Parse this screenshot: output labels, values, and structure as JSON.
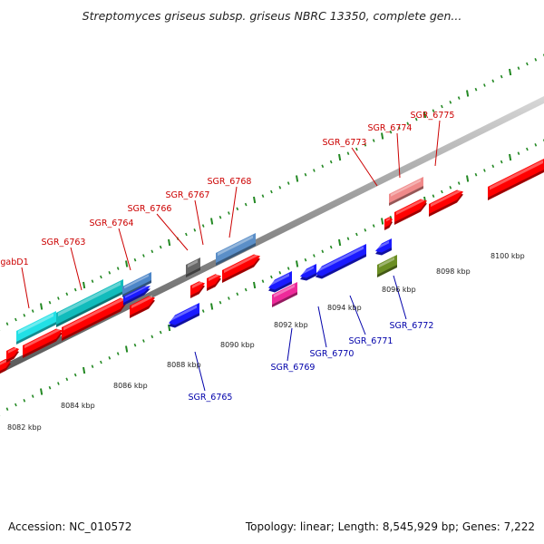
{
  "title": "Streptomyces griseus subsp. griseus NBRC 13350, complete gen...",
  "footer": {
    "accession": "Accession: NC_010572",
    "topology": "Topology: linear; Length: 8,545,929 bp; Genes: 7,222"
  },
  "colors": {
    "forward_label": "#cc0000",
    "reverse_label": "#0000aa",
    "forward_gene": "#ff0000",
    "reverse_gene": "#1a1aff",
    "ruler_dots": "#228822",
    "axis": "#9a9a9a"
  },
  "ruler_ticks": [
    "8082 kbp",
    "8084 kbp",
    "8086 kbp",
    "8088 kbp",
    "8090 kbp",
    "8092 kbp",
    "8094 kbp",
    "8096 kbp",
    "8098 kbp",
    "8100 kbp"
  ],
  "forward_genes": [
    "gabD1",
    "SGR_6763",
    "SGR_6764",
    "SGR_6766",
    "SGR_6767",
    "SGR_6768",
    "SGR_6773",
    "SGR_6774",
    "SGR_6775"
  ],
  "reverse_genes": [
    "SGR_6765",
    "SGR_6769",
    "SGR_6770",
    "SGR_6771",
    "SGR_6772"
  ]
}
